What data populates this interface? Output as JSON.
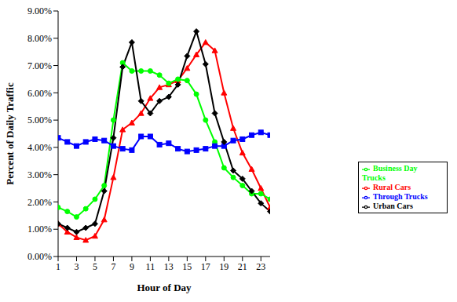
{
  "chart_data": {
    "type": "line",
    "x_label": "Hour of Day",
    "y_label": "Percent of Daily Traffic",
    "x": [
      1,
      2,
      3,
      4,
      5,
      6,
      7,
      8,
      9,
      10,
      11,
      12,
      13,
      14,
      15,
      16,
      17,
      18,
      19,
      20,
      21,
      22,
      23,
      24
    ],
    "xlim": [
      1,
      24
    ],
    "xticks": [
      1,
      3,
      5,
      7,
      9,
      11,
      13,
      15,
      17,
      19,
      21,
      23
    ],
    "ylim": [
      0,
      9
    ],
    "yticks": [
      {
        "value": 0,
        "label": "0.00%"
      },
      {
        "value": 1,
        "label": "1.00%"
      },
      {
        "value": 2,
        "label": "2.00%"
      },
      {
        "value": 3,
        "label": "3.00%"
      },
      {
        "value": 4,
        "label": "4.00%"
      },
      {
        "value": 5,
        "label": "5.00%"
      },
      {
        "value": 6,
        "label": "6.00%"
      },
      {
        "value": 7,
        "label": "7.00%"
      },
      {
        "value": 8,
        "label": "8.00%"
      },
      {
        "value": 9,
        "label": "9.00%"
      }
    ],
    "grid": false,
    "legend": "right",
    "series": [
      {
        "name": "Rural Cars",
        "color": "#ff0000",
        "marker": "triangle",
        "values": [
          1.2,
          0.9,
          0.7,
          0.6,
          0.75,
          1.35,
          2.9,
          4.65,
          4.9,
          5.25,
          5.8,
          6.2,
          6.3,
          6.45,
          6.9,
          7.4,
          7.85,
          7.55,
          6.0,
          4.7,
          3.8,
          3.2,
          2.5,
          1.8
        ]
      },
      {
        "name": "Business Day Trucks",
        "color": "#00ff00",
        "marker": "circle",
        "values": [
          1.8,
          1.65,
          1.45,
          1.75,
          2.1,
          2.6,
          5.0,
          7.1,
          6.8,
          6.8,
          6.8,
          6.65,
          6.35,
          6.5,
          6.45,
          5.95,
          5.0,
          4.2,
          3.25,
          2.9,
          2.6,
          2.3,
          2.3,
          2.1
        ]
      },
      {
        "name": "Through Trucks",
        "color": "#0000ff",
        "marker": "square",
        "values": [
          4.35,
          4.2,
          4.05,
          4.2,
          4.3,
          4.25,
          4.05,
          3.95,
          3.9,
          4.4,
          4.4,
          4.1,
          4.15,
          3.95,
          3.85,
          3.9,
          3.95,
          4.05,
          4.05,
          4.25,
          4.3,
          4.45,
          4.55,
          4.45
        ]
      },
      {
        "name": "Urban Cars",
        "color": "#000000",
        "marker": "diamond",
        "values": [
          1.2,
          1.05,
          0.9,
          1.05,
          1.2,
          2.4,
          4.35,
          6.95,
          7.85,
          5.7,
          5.25,
          5.7,
          5.85,
          6.3,
          7.35,
          8.25,
          7.05,
          5.25,
          4.2,
          3.15,
          2.85,
          2.4,
          1.95,
          1.65
        ]
      }
    ]
  }
}
